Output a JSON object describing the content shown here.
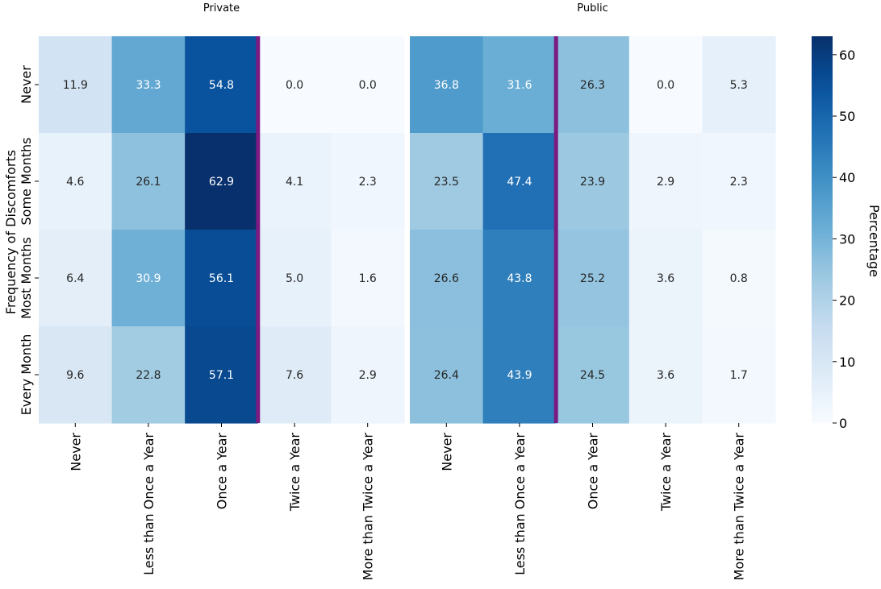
{
  "chart_data": {
    "type": "heatmap",
    "ylabel": "Frequency of Discomforts",
    "colorbar_label": "Percentage",
    "colorbar_ticks": [
      0,
      10,
      20,
      30,
      40,
      50,
      60
    ],
    "value_range": [
      0,
      63
    ],
    "rows": [
      "Never",
      "Some Months",
      "Most Months",
      "Every Month"
    ],
    "columns": [
      "Never",
      "Less than Once a Year",
      "Once a Year",
      "Twice a Year",
      "More than Twice a Year"
    ],
    "panels": [
      {
        "title": "Private",
        "highlight_column": 2,
        "values": [
          [
            11.9,
            33.3,
            54.8,
            0.0,
            0.0
          ],
          [
            4.6,
            26.1,
            62.9,
            4.1,
            2.3
          ],
          [
            6.4,
            30.9,
            56.1,
            5.0,
            1.6
          ],
          [
            9.6,
            22.8,
            57.1,
            7.6,
            2.9
          ]
        ]
      },
      {
        "title": "Public",
        "highlight_column": 1,
        "values": [
          [
            36.8,
            31.6,
            26.3,
            0.0,
            5.3
          ],
          [
            23.5,
            47.4,
            23.9,
            2.9,
            2.3
          ],
          [
            26.6,
            43.8,
            25.2,
            3.6,
            0.8
          ],
          [
            26.4,
            43.9,
            24.5,
            3.6,
            1.7
          ]
        ]
      }
    ],
    "colors": {
      "highlight": "#7b1a80",
      "text_dark": "#262626",
      "text_light": "#ffffff"
    }
  }
}
